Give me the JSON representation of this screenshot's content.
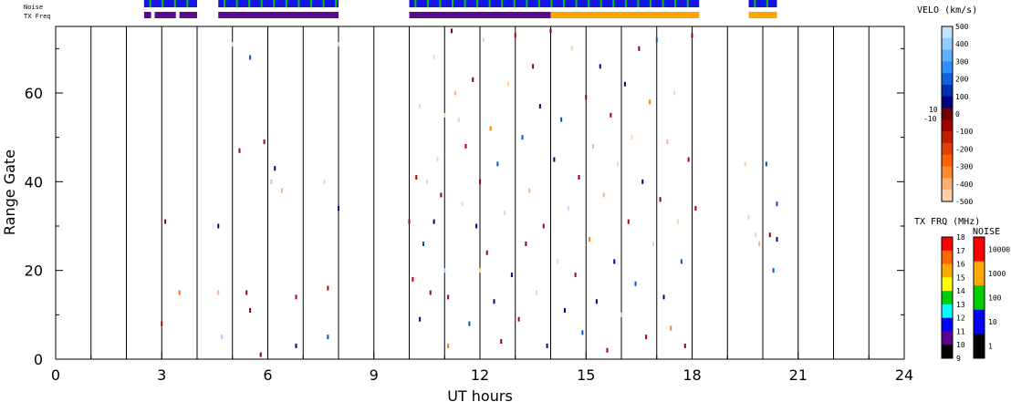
{
  "chart_data": {
    "type": "scatter",
    "xlabel": "UT hours",
    "ylabel": "Range Gate",
    "xlim": [
      0,
      24
    ],
    "ylim": [
      0,
      75
    ],
    "x_ticks": [
      "0",
      "3",
      "6",
      "9",
      "12",
      "15",
      "18",
      "21",
      "24"
    ],
    "y_ticks": [
      "0",
      "20",
      "40",
      "60"
    ],
    "noise_label": "Noise",
    "txfreq_label": "TX Freq",
    "noise_bars": [
      {
        "start": 2.5,
        "end": 4.0,
        "color": "#1414e6"
      },
      {
        "start": 4.6,
        "end": 8.0,
        "color": "#1414e6"
      },
      {
        "start": 10.0,
        "end": 18.2,
        "color": "#1414e6"
      },
      {
        "start": 19.6,
        "end": 20.4,
        "color": "#1414e6"
      }
    ],
    "txfreq_bars": [
      {
        "start": 2.5,
        "end": 2.7,
        "color": "#5a0a8c"
      },
      {
        "start": 2.8,
        "end": 3.4,
        "color": "#5a0a8c"
      },
      {
        "start": 3.5,
        "end": 4.0,
        "color": "#5a0a8c"
      },
      {
        "start": 4.6,
        "end": 8.0,
        "color": "#5a0a8c"
      },
      {
        "start": 10.0,
        "end": 14.0,
        "color": "#5a0a8c"
      },
      {
        "start": 14.0,
        "end": 18.2,
        "color": "#ffa500"
      },
      {
        "start": 19.6,
        "end": 20.4,
        "color": "#ffa500"
      }
    ],
    "points": [
      {
        "x": 3.0,
        "y": 8,
        "color": "#b00000"
      },
      {
        "x": 3.1,
        "y": 31,
        "color": "#8b0000"
      },
      {
        "x": 3.5,
        "y": 15,
        "color": "#ff6600"
      },
      {
        "x": 4.6,
        "y": 30,
        "color": "#00008b"
      },
      {
        "x": 4.6,
        "y": 15,
        "color": "#ffb080"
      },
      {
        "x": 4.7,
        "y": 5,
        "color": "#a0d0ff"
      },
      {
        "x": 5.0,
        "y": 71,
        "color": "#c0e0ff"
      },
      {
        "x": 5.2,
        "y": 47,
        "color": "#b00000"
      },
      {
        "x": 5.4,
        "y": 15,
        "color": "#8b0000"
      },
      {
        "x": 5.5,
        "y": 11,
        "color": "#8b0000"
      },
      {
        "x": 5.5,
        "y": 68,
        "color": "#0050d0"
      },
      {
        "x": 5.8,
        "y": 1,
        "color": "#8b0000"
      },
      {
        "x": 5.9,
        "y": 49,
        "color": "#b00000"
      },
      {
        "x": 6.1,
        "y": 40,
        "color": "#a0d0ff"
      },
      {
        "x": 6.2,
        "y": 43,
        "color": "#00008b"
      },
      {
        "x": 6.4,
        "y": 38,
        "color": "#ffb080"
      },
      {
        "x": 6.8,
        "y": 3,
        "color": "#00008b"
      },
      {
        "x": 6.8,
        "y": 14,
        "color": "#b00000"
      },
      {
        "x": 7.7,
        "y": 16,
        "color": "#b00000"
      },
      {
        "x": 7.7,
        "y": 5,
        "color": "#0050d0"
      },
      {
        "x": 7.6,
        "y": 40,
        "color": "#ffd0a0"
      },
      {
        "x": 8.0,
        "y": 71,
        "color": "#c0e0ff"
      },
      {
        "x": 8.0,
        "y": 34,
        "color": "#00008b"
      },
      {
        "x": 10.0,
        "y": 31,
        "color": "#8b0000"
      },
      {
        "x": 10.1,
        "y": 18,
        "color": "#b00000"
      },
      {
        "x": 10.2,
        "y": 41,
        "color": "#b00000"
      },
      {
        "x": 10.3,
        "y": 9,
        "color": "#00008b"
      },
      {
        "x": 10.3,
        "y": 57,
        "color": "#c0e0ff"
      },
      {
        "x": 10.4,
        "y": 26,
        "color": "#0050d0"
      },
      {
        "x": 10.5,
        "y": 40,
        "color": "#ffd0a0"
      },
      {
        "x": 10.6,
        "y": 15,
        "color": "#b00000"
      },
      {
        "x": 10.7,
        "y": 31,
        "color": "#00008b"
      },
      {
        "x": 10.7,
        "y": 68,
        "color": "#ffd0a0"
      },
      {
        "x": 10.8,
        "y": 45,
        "color": "#c0e0ff"
      },
      {
        "x": 10.9,
        "y": 37,
        "color": "#8b0000"
      },
      {
        "x": 11.0,
        "y": 55,
        "color": "#ffd0a0"
      },
      {
        "x": 11.0,
        "y": 20,
        "color": "#a0d0ff"
      },
      {
        "x": 11.1,
        "y": 14,
        "color": "#b00000"
      },
      {
        "x": 11.1,
        "y": 3,
        "color": "#ff8000"
      },
      {
        "x": 11.2,
        "y": 74,
        "color": "#8b0000"
      },
      {
        "x": 11.3,
        "y": 60,
        "color": "#ffb080"
      },
      {
        "x": 11.4,
        "y": 54,
        "color": "#c0e0ff"
      },
      {
        "x": 11.5,
        "y": 35,
        "color": "#ffd0a0"
      },
      {
        "x": 11.6,
        "y": 48,
        "color": "#b00000"
      },
      {
        "x": 11.7,
        "y": 8,
        "color": "#0050d0"
      },
      {
        "x": 11.8,
        "y": 63,
        "color": "#8b0000"
      },
      {
        "x": 11.9,
        "y": 30,
        "color": "#00008b"
      },
      {
        "x": 12.0,
        "y": 20,
        "color": "#ffd0a0"
      },
      {
        "x": 12.0,
        "y": 40,
        "color": "#b00000"
      },
      {
        "x": 12.1,
        "y": 72,
        "color": "#c0e0ff"
      },
      {
        "x": 12.2,
        "y": 24,
        "color": "#b00000"
      },
      {
        "x": 12.3,
        "y": 52,
        "color": "#ff8000"
      },
      {
        "x": 12.4,
        "y": 13,
        "color": "#00008b"
      },
      {
        "x": 12.5,
        "y": 44,
        "color": "#0050d0"
      },
      {
        "x": 12.6,
        "y": 4,
        "color": "#8b0000"
      },
      {
        "x": 12.7,
        "y": 33,
        "color": "#c0e0ff"
      },
      {
        "x": 12.8,
        "y": 62,
        "color": "#ffd0a0"
      },
      {
        "x": 12.9,
        "y": 19,
        "color": "#00008b"
      },
      {
        "x": 13.0,
        "y": 73,
        "color": "#b00000"
      },
      {
        "x": 13.1,
        "y": 9,
        "color": "#b00000"
      },
      {
        "x": 13.2,
        "y": 50,
        "color": "#0050d0"
      },
      {
        "x": 13.3,
        "y": 26,
        "color": "#8b0000"
      },
      {
        "x": 13.4,
        "y": 38,
        "color": "#ffb080"
      },
      {
        "x": 13.5,
        "y": 66,
        "color": "#8b0000"
      },
      {
        "x": 13.6,
        "y": 15,
        "color": "#c0e0ff"
      },
      {
        "x": 13.7,
        "y": 57,
        "color": "#00008b"
      },
      {
        "x": 13.8,
        "y": 30,
        "color": "#b00000"
      },
      {
        "x": 13.9,
        "y": 3,
        "color": "#00008b"
      },
      {
        "x": 14.0,
        "y": 74,
        "color": "#8b0000"
      },
      {
        "x": 14.1,
        "y": 45,
        "color": "#00008b"
      },
      {
        "x": 14.2,
        "y": 22,
        "color": "#ffd0a0"
      },
      {
        "x": 14.3,
        "y": 54,
        "color": "#0050d0"
      },
      {
        "x": 14.4,
        "y": 11,
        "color": "#00008b"
      },
      {
        "x": 14.5,
        "y": 34,
        "color": "#c0e0ff"
      },
      {
        "x": 14.6,
        "y": 70,
        "color": "#ffd0a0"
      },
      {
        "x": 14.7,
        "y": 19,
        "color": "#b00000"
      },
      {
        "x": 14.8,
        "y": 41,
        "color": "#8b0000"
      },
      {
        "x": 14.9,
        "y": 6,
        "color": "#0050d0"
      },
      {
        "x": 15.0,
        "y": 59,
        "color": "#8b0000"
      },
      {
        "x": 15.1,
        "y": 27,
        "color": "#ff8000"
      },
      {
        "x": 15.2,
        "y": 48,
        "color": "#a0d0ff"
      },
      {
        "x": 15.3,
        "y": 13,
        "color": "#00008b"
      },
      {
        "x": 15.4,
        "y": 66,
        "color": "#00008b"
      },
      {
        "x": 15.5,
        "y": 37,
        "color": "#ffb080"
      },
      {
        "x": 15.6,
        "y": 2,
        "color": "#b00000"
      },
      {
        "x": 15.7,
        "y": 55,
        "color": "#b00000"
      },
      {
        "x": 15.8,
        "y": 22,
        "color": "#00008b"
      },
      {
        "x": 15.9,
        "y": 44,
        "color": "#c0e0ff"
      },
      {
        "x": 16.0,
        "y": 10,
        "color": "#ffd0a0"
      },
      {
        "x": 16.1,
        "y": 62,
        "color": "#00008b"
      },
      {
        "x": 16.2,
        "y": 31,
        "color": "#b00000"
      },
      {
        "x": 16.3,
        "y": 50,
        "color": "#ffd0a0"
      },
      {
        "x": 16.4,
        "y": 17,
        "color": "#0050d0"
      },
      {
        "x": 16.5,
        "y": 70,
        "color": "#8b0000"
      },
      {
        "x": 16.6,
        "y": 40,
        "color": "#00008b"
      },
      {
        "x": 16.7,
        "y": 5,
        "color": "#b00000"
      },
      {
        "x": 16.8,
        "y": 58,
        "color": "#ff8000"
      },
      {
        "x": 16.9,
        "y": 26,
        "color": "#c0e0ff"
      },
      {
        "x": 17.0,
        "y": 72,
        "color": "#0050d0"
      },
      {
        "x": 17.1,
        "y": 36,
        "color": "#8b0000"
      },
      {
        "x": 17.2,
        "y": 14,
        "color": "#00008b"
      },
      {
        "x": 17.3,
        "y": 49,
        "color": "#ffb080"
      },
      {
        "x": 17.4,
        "y": 7,
        "color": "#ff8000"
      },
      {
        "x": 17.5,
        "y": 60,
        "color": "#c0e0ff"
      },
      {
        "x": 17.6,
        "y": 31,
        "color": "#ffd0a0"
      },
      {
        "x": 17.7,
        "y": 22,
        "color": "#0050d0"
      },
      {
        "x": 17.8,
        "y": 3,
        "color": "#8b0000"
      },
      {
        "x": 17.9,
        "y": 45,
        "color": "#b00000"
      },
      {
        "x": 18.0,
        "y": 73,
        "color": "#8b0000"
      },
      {
        "x": 18.1,
        "y": 34,
        "color": "#b00000"
      },
      {
        "x": 19.5,
        "y": 44,
        "color": "#ffd0a0"
      },
      {
        "x": 19.6,
        "y": 32,
        "color": "#c0e0ff"
      },
      {
        "x": 19.8,
        "y": 28,
        "color": "#c0e0ff"
      },
      {
        "x": 19.9,
        "y": 26,
        "color": "#ffb080"
      },
      {
        "x": 20.1,
        "y": 44,
        "color": "#0050d0"
      },
      {
        "x": 20.2,
        "y": 28,
        "color": "#8b0000"
      },
      {
        "x": 20.3,
        "y": 20,
        "color": "#0050d0"
      },
      {
        "x": 20.4,
        "y": 35,
        "color": "#0050d0"
      },
      {
        "x": 20.4,
        "y": 27,
        "color": "#00008b"
      }
    ]
  },
  "velo_legend": {
    "title": "VELO (km/s)",
    "ticks": [
      "500",
      "400",
      "300",
      "200",
      "100",
      "0",
      "-100",
      "-200",
      "-300",
      "-400",
      "-500"
    ],
    "side_labels": [
      "10",
      "-10"
    ],
    "colors": [
      "#c0e4ff",
      "#90ccff",
      "#60b0ff",
      "#3090ff",
      "#1060e0",
      "#0030b0",
      "#000080",
      "#700000",
      "#a00000",
      "#c02000",
      "#e04000",
      "#ff6000",
      "#ff8a30",
      "#ffb070",
      "#ffd0a8"
    ]
  },
  "txfrq_legend": {
    "title": "TX FRQ (MHz)",
    "ticks": [
      "18",
      "17",
      "16",
      "15",
      "14",
      "13",
      "12",
      "11",
      "10",
      "9"
    ],
    "colors": [
      "#ff0000",
      "#ff6600",
      "#ffaa00",
      "#ffff00",
      "#00cc00",
      "#00ffff",
      "#0000ff",
      "#5a008c",
      "#000000"
    ]
  },
  "noise_legend": {
    "title": "NOISE",
    "ticks": [
      "10000",
      "1000",
      "100",
      "10",
      "1"
    ],
    "colors": [
      "#ff0000",
      "#ffaa00",
      "#00cc00",
      "#0000ff",
      "#000000"
    ]
  }
}
